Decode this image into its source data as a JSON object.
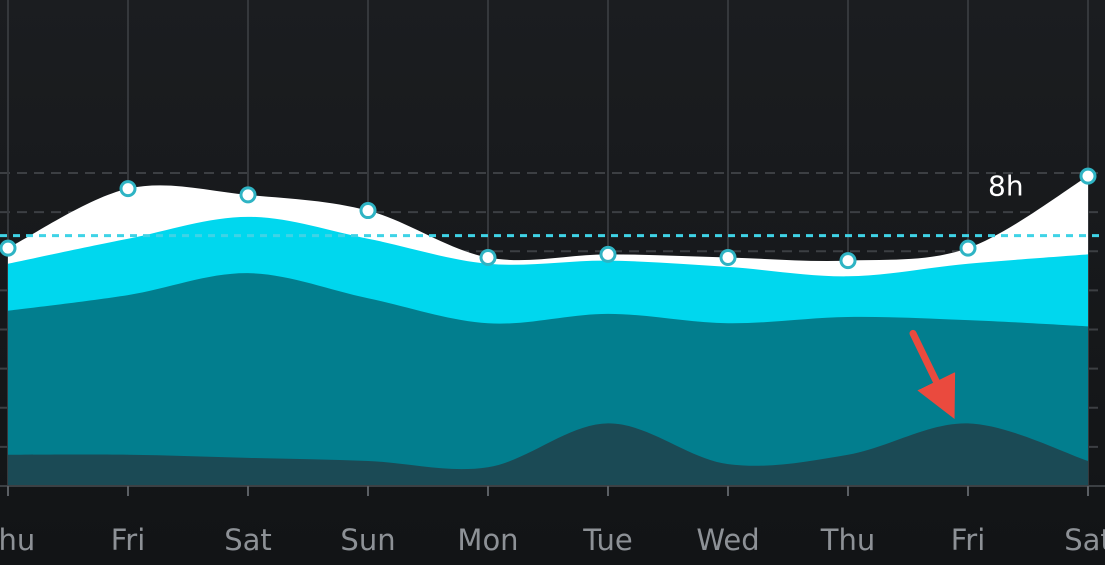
{
  "chart_data": {
    "type": "area",
    "stacked": true,
    "title": "",
    "xlabel": "",
    "ylabel": "",
    "categories": [
      "Thu",
      "Fri",
      "Sat",
      "Sun",
      "Mon",
      "Tue",
      "Wed",
      "Thu",
      "Fri",
      "Sat"
    ],
    "y_unit": "hours",
    "ylim": [
      0,
      10.25
    ],
    "grid": true,
    "legend": "none",
    "series": [
      {
        "values": [
          1.0,
          1.0,
          0.9,
          0.8,
          0.6,
          2.0,
          0.7,
          1.0,
          2.0,
          0.8
        ],
        "color": "#1b4a55"
      },
      {
        "values": [
          4.6,
          5.1,
          5.9,
          5.2,
          4.6,
          3.5,
          4.5,
          4.4,
          3.3,
          4.3
        ],
        "color": "#027e8e"
      },
      {
        "values": [
          1.5,
          1.8,
          1.8,
          1.9,
          1.9,
          1.7,
          1.8,
          1.3,
          1.8,
          2.3
        ],
        "color": "#00d7ee"
      },
      {
        "values": [
          0.5,
          1.6,
          0.7,
          0.9,
          0.2,
          0.2,
          0.3,
          0.5,
          0.5,
          2.5
        ],
        "color": "#ffffff"
      }
    ],
    "totals": [
      7.6,
      9.5,
      9.3,
      8.8,
      7.3,
      7.4,
      7.3,
      7.2,
      7.6,
      9.9
    ],
    "reference_line": {
      "value": 8,
      "label": "8h",
      "color": "#3fd3e6",
      "style": "dashed"
    },
    "annotation": {
      "type": "arrow",
      "color": "#ea4a3e",
      "target_category_index": 8,
      "target_series_index": 0
    }
  }
}
